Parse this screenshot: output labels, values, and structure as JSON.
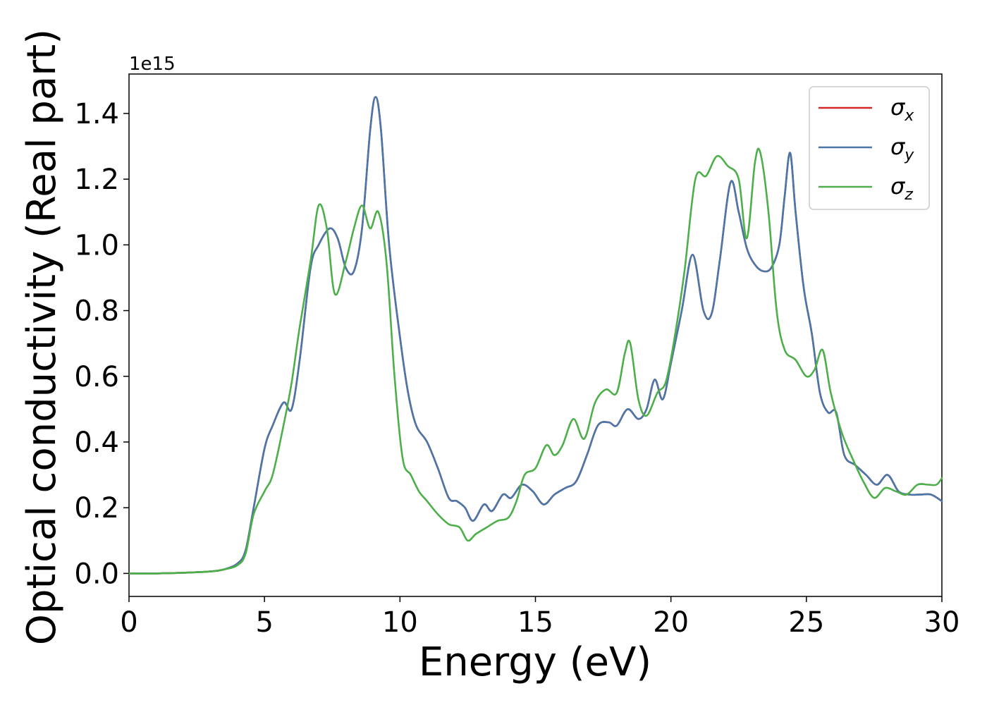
{
  "chart_data": {
    "type": "line",
    "title": "",
    "xlabel": "Energy (eV)",
    "ylabel": "Optical conductivity (Real part)",
    "y_offset_label": "1e15",
    "xlim": [
      0,
      30
    ],
    "ylim": [
      -0.07,
      1.52
    ],
    "xticks": [
      "0",
      "5",
      "10",
      "15",
      "20",
      "25",
      "30"
    ],
    "yticks": [
      "0.0",
      "0.2",
      "0.4",
      "0.6",
      "0.8",
      "1.0",
      "1.2",
      "1.4"
    ],
    "grid": false,
    "legend_position": "top-right",
    "series": [
      {
        "name": "σx",
        "symbol": "σ",
        "subscript": "x",
        "color": "#d62728",
        "x": [
          0,
          1,
          2,
          3,
          3.5,
          4,
          4.3,
          4.6,
          5,
          5.3,
          5.7,
          6,
          6.3,
          6.7,
          7,
          7.4,
          7.7,
          8,
          8.3,
          8.6,
          8.9,
          9.1,
          9.3,
          9.6,
          10,
          10.3,
          10.6,
          11,
          11.4,
          11.8,
          12.1,
          12.4,
          12.7,
          13.1,
          13.4,
          13.8,
          14.1,
          14.5,
          14.9,
          15.3,
          15.7,
          16.1,
          16.5,
          16.9,
          17.3,
          17.7,
          18,
          18.4,
          18.8,
          19.1,
          19.4,
          19.7,
          20,
          20.4,
          20.8,
          21.2,
          21.5,
          21.8,
          22.2,
          22.5,
          22.8,
          23.1,
          23.4,
          23.7,
          24,
          24.2,
          24.4,
          24.6,
          24.9,
          25.2,
          25.5,
          25.8,
          26.1,
          26.4,
          26.8,
          27.2,
          27.6,
          28,
          28.4,
          28.8,
          29.2,
          29.6,
          30
        ],
        "y": [
          0,
          0,
          0.002,
          0.006,
          0.012,
          0.03,
          0.07,
          0.2,
          0.38,
          0.45,
          0.52,
          0.5,
          0.65,
          0.93,
          1.0,
          1.05,
          1.02,
          0.93,
          0.92,
          1.05,
          1.35,
          1.45,
          1.35,
          1.0,
          0.72,
          0.55,
          0.45,
          0.4,
          0.32,
          0.23,
          0.22,
          0.2,
          0.16,
          0.21,
          0.19,
          0.24,
          0.23,
          0.27,
          0.25,
          0.21,
          0.24,
          0.26,
          0.28,
          0.36,
          0.45,
          0.46,
          0.45,
          0.5,
          0.47,
          0.5,
          0.59,
          0.53,
          0.64,
          0.8,
          0.97,
          0.8,
          0.79,
          0.95,
          1.19,
          1.1,
          0.99,
          0.94,
          0.92,
          0.93,
          1.0,
          1.15,
          1.28,
          1.1,
          0.87,
          0.73,
          0.55,
          0.49,
          0.49,
          0.36,
          0.33,
          0.3,
          0.27,
          0.3,
          0.25,
          0.24,
          0.24,
          0.24,
          0.22
        ]
      },
      {
        "name": "σy",
        "symbol": "σ",
        "subscript": "y",
        "color": "#4a77aa",
        "x": [
          0,
          1,
          2,
          3,
          3.5,
          4,
          4.3,
          4.6,
          5,
          5.3,
          5.7,
          6,
          6.3,
          6.7,
          7,
          7.4,
          7.7,
          8,
          8.3,
          8.6,
          8.9,
          9.1,
          9.3,
          9.6,
          10,
          10.3,
          10.6,
          11,
          11.4,
          11.8,
          12.1,
          12.4,
          12.7,
          13.1,
          13.4,
          13.8,
          14.1,
          14.5,
          14.9,
          15.3,
          15.7,
          16.1,
          16.5,
          16.9,
          17.3,
          17.7,
          18,
          18.4,
          18.8,
          19.1,
          19.4,
          19.7,
          20,
          20.4,
          20.8,
          21.2,
          21.5,
          21.8,
          22.2,
          22.5,
          22.8,
          23.1,
          23.4,
          23.7,
          24,
          24.2,
          24.4,
          24.6,
          24.9,
          25.2,
          25.5,
          25.8,
          26.1,
          26.4,
          26.8,
          27.2,
          27.6,
          28,
          28.4,
          28.8,
          29.2,
          29.6,
          30
        ],
        "y": [
          0,
          0,
          0.002,
          0.006,
          0.012,
          0.03,
          0.07,
          0.2,
          0.38,
          0.45,
          0.52,
          0.5,
          0.65,
          0.93,
          1.0,
          1.05,
          1.02,
          0.93,
          0.92,
          1.05,
          1.35,
          1.45,
          1.35,
          1.0,
          0.72,
          0.55,
          0.45,
          0.4,
          0.32,
          0.23,
          0.22,
          0.2,
          0.16,
          0.21,
          0.19,
          0.24,
          0.23,
          0.27,
          0.25,
          0.21,
          0.24,
          0.26,
          0.28,
          0.36,
          0.45,
          0.46,
          0.45,
          0.5,
          0.47,
          0.5,
          0.59,
          0.53,
          0.64,
          0.8,
          0.97,
          0.8,
          0.79,
          0.95,
          1.19,
          1.1,
          0.99,
          0.94,
          0.92,
          0.93,
          1.0,
          1.15,
          1.28,
          1.1,
          0.87,
          0.73,
          0.55,
          0.49,
          0.49,
          0.36,
          0.33,
          0.3,
          0.27,
          0.3,
          0.25,
          0.24,
          0.24,
          0.24,
          0.22
        ]
      },
      {
        "name": "σz",
        "symbol": "σ",
        "subscript": "z",
        "color": "#4daf4a",
        "x": [
          0,
          1,
          2,
          3,
          3.5,
          4,
          4.3,
          4.6,
          5,
          5.3,
          5.7,
          6,
          6.3,
          6.7,
          7,
          7.3,
          7.6,
          8,
          8.3,
          8.6,
          8.9,
          9.2,
          9.5,
          9.8,
          10.1,
          10.4,
          10.7,
          11,
          11.4,
          11.8,
          12.2,
          12.5,
          12.8,
          13.2,
          13.6,
          14,
          14.3,
          14.6,
          15,
          15.4,
          15.7,
          16,
          16.4,
          16.8,
          17.2,
          17.6,
          18,
          18.3,
          18.5,
          18.8,
          19.1,
          19.5,
          19.8,
          20.1,
          20.5,
          20.9,
          21.3,
          21.7,
          22.1,
          22.5,
          22.8,
          23.1,
          23.3,
          23.6,
          23.9,
          24.2,
          24.6,
          25,
          25.3,
          25.6,
          25.9,
          26.3,
          26.7,
          27.1,
          27.5,
          27.9,
          28.3,
          28.7,
          29.1,
          29.5,
          29.8,
          30
        ],
        "y": [
          0,
          0,
          0.002,
          0.006,
          0.012,
          0.025,
          0.06,
          0.18,
          0.25,
          0.3,
          0.45,
          0.58,
          0.75,
          0.95,
          1.12,
          1.05,
          0.85,
          0.95,
          1.05,
          1.12,
          1.05,
          1.1,
          0.95,
          0.6,
          0.35,
          0.3,
          0.25,
          0.22,
          0.18,
          0.15,
          0.14,
          0.1,
          0.12,
          0.14,
          0.16,
          0.17,
          0.22,
          0.3,
          0.32,
          0.39,
          0.36,
          0.39,
          0.47,
          0.41,
          0.52,
          0.56,
          0.55,
          0.67,
          0.7,
          0.53,
          0.48,
          0.55,
          0.58,
          0.7,
          0.92,
          1.2,
          1.21,
          1.27,
          1.24,
          1.2,
          1.02,
          1.25,
          1.28,
          1.1,
          0.8,
          0.68,
          0.65,
          0.6,
          0.62,
          0.68,
          0.55,
          0.43,
          0.35,
          0.28,
          0.23,
          0.26,
          0.25,
          0.24,
          0.27,
          0.27,
          0.27,
          0.29
        ]
      }
    ]
  }
}
